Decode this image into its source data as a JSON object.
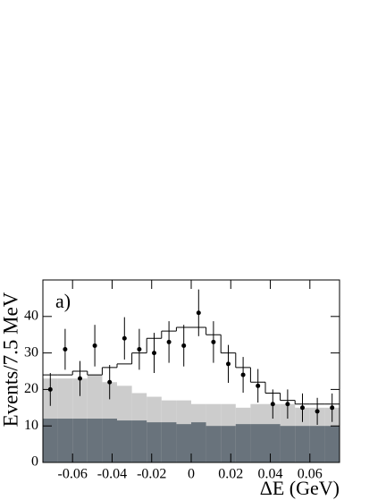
{
  "chart_data": {
    "type": "histogram",
    "annotation": "a)",
    "x_label": "ΔE (GeV)",
    "y_label": "Events/7.5 MeV",
    "bins": [
      -0.075,
      -0.0675,
      -0.06,
      -0.0525,
      -0.045,
      -0.0375,
      -0.03,
      -0.0225,
      -0.015,
      -0.0075,
      0,
      0.0075,
      0.015,
      0.0225,
      0.03,
      0.0375,
      0.045,
      0.0525,
      0.06,
      0.0675,
      0.075
    ],
    "series": [
      {
        "style": "fill",
        "color": "#cccccc",
        "values": [
          23,
          23,
          23,
          24,
          22,
          21,
          19,
          18,
          17,
          17,
          16,
          16,
          16,
          15,
          16,
          16,
          16,
          15,
          15,
          15
        ]
      },
      {
        "style": "fill",
        "color": "#69737c",
        "values": [
          12,
          12,
          12,
          12,
          12,
          11.5,
          11.5,
          11,
          11,
          10.5,
          11,
          10,
          10,
          10.5,
          10.5,
          10.5,
          10,
          10,
          10,
          10
        ]
      },
      {
        "style": "line",
        "color": "#000000",
        "values": [
          24,
          24,
          25,
          24,
          26,
          27,
          30,
          34,
          36,
          37,
          37,
          35,
          30,
          26,
          22,
          19,
          17,
          16,
          16,
          16
        ]
      },
      {
        "style": "points",
        "color": "#000000",
        "values": [
          20,
          31,
          23,
          32,
          22,
          34,
          31,
          30,
          33,
          32,
          41,
          33,
          27,
          24,
          21,
          16,
          16,
          15,
          14,
          15
        ],
        "errors": [
          4.5,
          5.6,
          4.8,
          5.7,
          4.7,
          5.8,
          5.6,
          5.5,
          5.7,
          5.7,
          6.4,
          5.7,
          5.2,
          4.9,
          4.6,
          4,
          4,
          3.9,
          3.7,
          3.9
        ]
      }
    ],
    "xlim": [
      -0.075,
      0.075
    ],
    "xticks": [
      -0.06,
      -0.04,
      -0.02,
      0,
      0.02,
      0.04,
      0.06
    ],
    "ylim": [
      0,
      50
    ],
    "yticks": [
      0,
      10,
      20,
      30,
      40
    ]
  }
}
